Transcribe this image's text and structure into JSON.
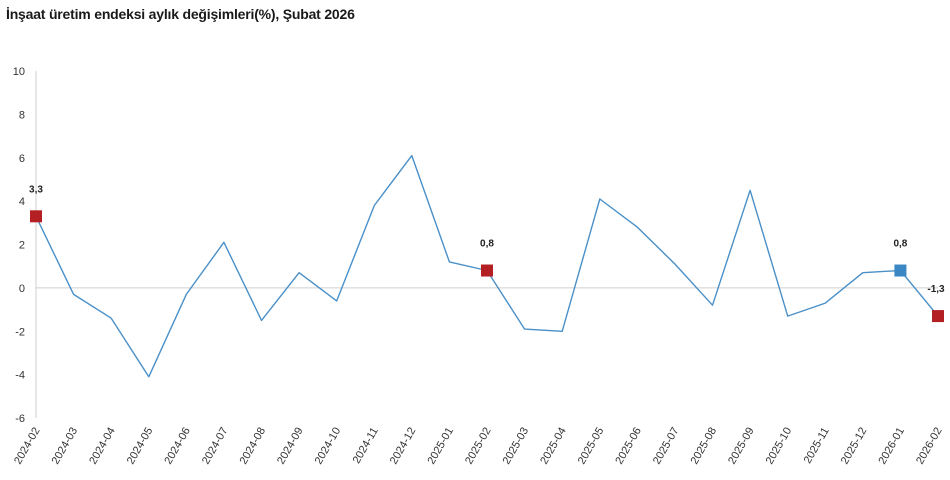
{
  "title": "İnşaat üretim endeksi aylık değişimleri(%), Şubat 2026",
  "chart_data": {
    "type": "line",
    "title": "İnşaat üretim endeksi aylık değişimleri(%), Şubat 2026",
    "xlabel": "",
    "ylabel": "",
    "ylim": [
      -6,
      10
    ],
    "yticks": [
      "-6",
      "-4",
      "-2",
      "0",
      "2",
      "4",
      "6",
      "8",
      "10"
    ],
    "grid": false,
    "categories": [
      "2024-02",
      "2024-03",
      "2024-04",
      "2024-05",
      "2024-06",
      "2024-07",
      "2024-08",
      "2024-09",
      "2024-10",
      "2024-11",
      "2024-12",
      "2025-01",
      "2025-02",
      "2025-03",
      "2025-04",
      "2025-05",
      "2025-06",
      "2025-07",
      "2025-08",
      "2025-09",
      "2025-10",
      "2025-11",
      "2025-12",
      "2026-01",
      "2026-02"
    ],
    "series": [
      {
        "values": [
          3.3,
          -0.3,
          -1.4,
          -4.1,
          -0.3,
          2.1,
          -1.5,
          0.7,
          -0.6,
          3.8,
          6.1,
          1.2,
          0.8,
          -1.9,
          -2.0,
          4.1,
          2.8,
          1.1,
          -0.8,
          4.5,
          -1.3,
          -0.7,
          0.7,
          0.8,
          -1.3
        ],
        "color": "#4a90c8"
      }
    ],
    "highlights": [
      {
        "category": "2024-02",
        "value": 3.3,
        "label": "3,3",
        "color": "#b41f24"
      },
      {
        "category": "2025-02",
        "value": 0.8,
        "label": "0,8",
        "color": "#b41f24"
      },
      {
        "category": "2026-01",
        "value": 0.8,
        "label": "0,8",
        "color": "#3a87c4"
      },
      {
        "category": "2026-02",
        "value": -1.3,
        "label": "-1,3",
        "color": "#b41f24"
      }
    ]
  }
}
